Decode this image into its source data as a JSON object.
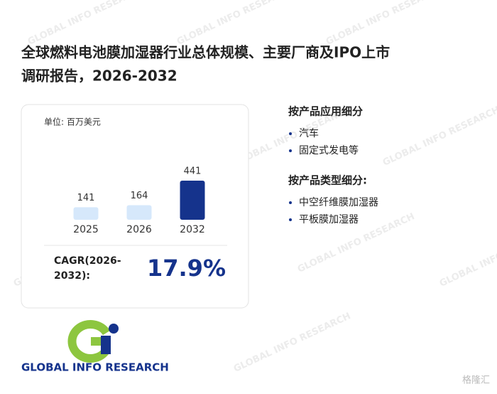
{
  "title_lines": [
    "全球燃料电池膜加湿器行业总体规模、主要厂商及IPO上市",
    "调研报告，2026-2032"
  ],
  "chart_data": {
    "type": "bar",
    "unit": "单位: 百万美元",
    "categories": [
      "2025",
      "2026",
      "2032"
    ],
    "values": [
      141,
      164,
      441
    ],
    "colors": [
      "#d6e8fb",
      "#d6e8fb",
      "#15338c"
    ]
  },
  "cagr": {
    "label_lines": [
      "CAGR(2026-",
      "2032):"
    ],
    "value": "17.9%"
  },
  "segments": [
    {
      "heading": "按产品应用细分",
      "items": [
        "汽车",
        "固定式发电等"
      ]
    },
    {
      "heading": "按产品类型细分:",
      "items": [
        "中空纤维膜加湿器",
        "平板膜加湿器"
      ]
    }
  ],
  "logo_text": "GLOBAL INFO RESEARCH",
  "watermark": "GLOBAL INFO RESEARCH",
  "corner_mark": "格隆汇"
}
